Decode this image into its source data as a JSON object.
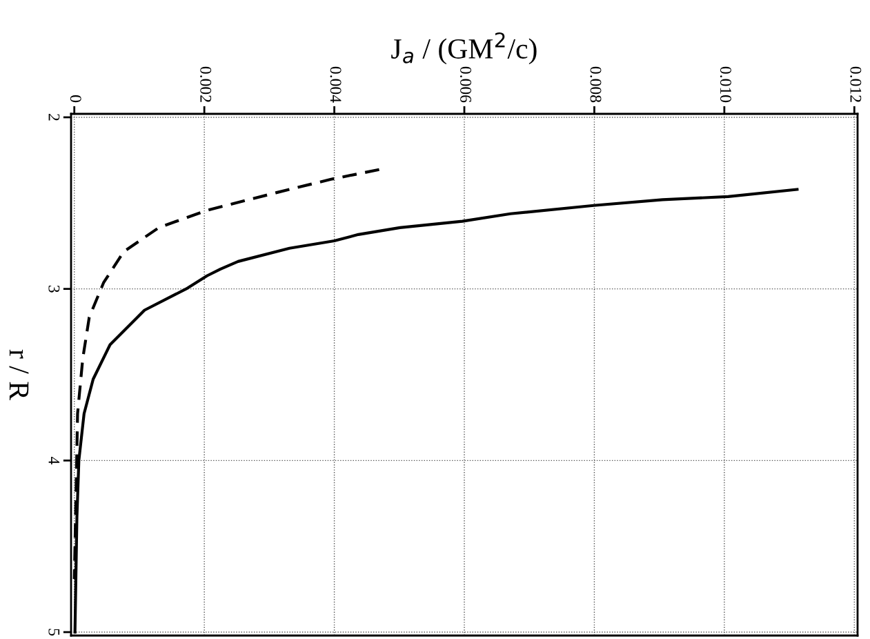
{
  "chart_data": {
    "type": "line",
    "xlabel": "J$_{a}$ / (GM$^{2}$/c)",
    "ylabel": "r / R",
    "xlim": [
      -5e-05,
      0.01205
    ],
    "ylim": [
      5.02,
      1.98
    ],
    "xticks": [
      0,
      {
        "value": 0.002,
        "label": "0.002"
      },
      {
        "value": 0.004,
        "label": "0.004"
      },
      {
        "value": 0.006,
        "label": "0.006"
      },
      {
        "value": 0.008,
        "label": "0.008"
      },
      {
        "value": 0.01,
        "label": "0.010"
      },
      {
        "value": 0.012,
        "label": "0.012"
      }
    ],
    "yticks": [
      2,
      3,
      4,
      5
    ],
    "grid": true,
    "series": [
      {
        "color": "#000000",
        "line_style": "solid",
        "x": [
          0.01112,
          0.01006,
          0.00905,
          0.00799,
          0.00671,
          0.00597,
          0.00501,
          0.00437,
          0.004,
          0.00331,
          0.00252,
          0.00225,
          0.00204,
          0.00172,
          0.00108,
          0.00055,
          0.00029,
          0.00015,
          7e-05,
          4e-05,
          1e-05
        ],
        "values": [
          2.42,
          2.462,
          2.48,
          2.514,
          2.562,
          2.606,
          2.643,
          2.683,
          2.72,
          2.763,
          2.84,
          2.884,
          2.924,
          3.0,
          3.124,
          3.325,
          3.526,
          3.727,
          4.0,
          4.33,
          5.0
        ]
      },
      {
        "color": "#000000",
        "line_style": "dashed",
        "x": [
          0.00469,
          0.00395,
          0.0031,
          0.00204,
          0.0013,
          0.00076,
          0.00045,
          0.00023,
          0.00013,
          5e-05,
          3e-05,
          0.0
        ],
        "values": [
          2.305,
          2.361,
          2.44,
          2.542,
          2.643,
          2.783,
          2.964,
          3.165,
          3.406,
          3.727,
          4.13,
          4.69
        ]
      }
    ]
  }
}
